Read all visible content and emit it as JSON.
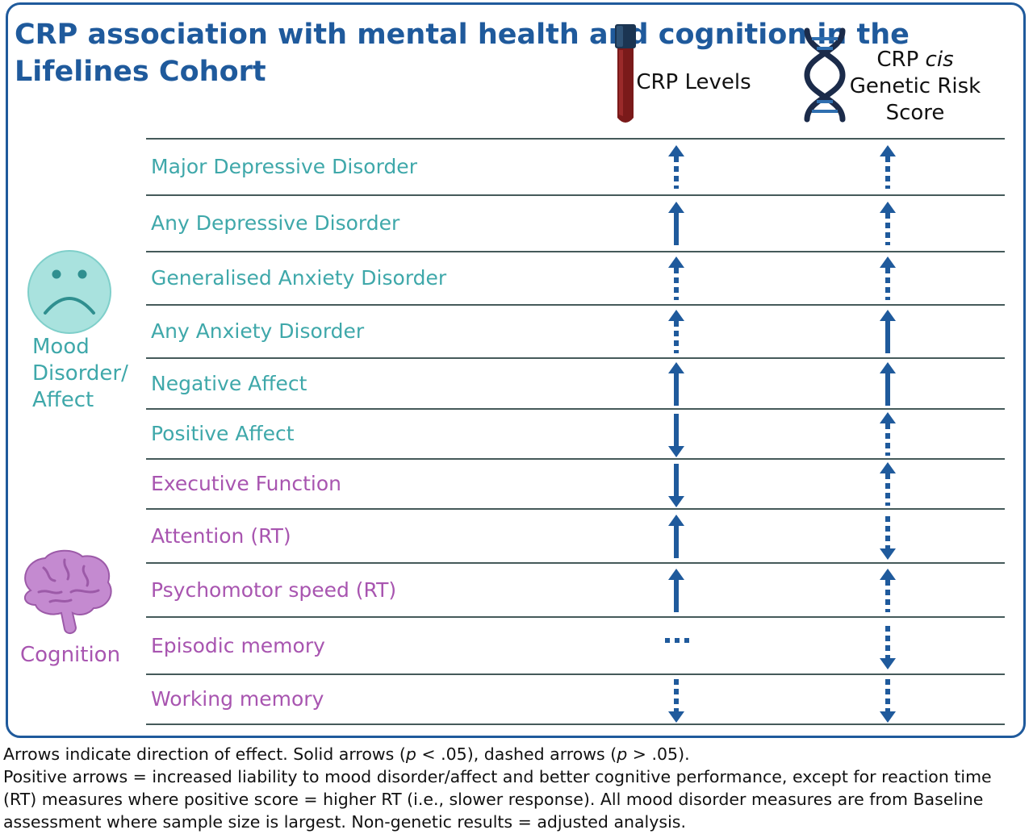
{
  "title": "CRP association with mental health and cognition in the Lifelines Cohort",
  "columns": {
    "levels": "CRP Levels",
    "genetic_pre": "CRP ",
    "genetic_cis": "cis",
    "genetic_line2": "Genetic Risk",
    "genetic_line3": "Score"
  },
  "categories": {
    "mood": [
      "Mood",
      "Disorder/",
      "Affect"
    ],
    "cognition": "Cognition"
  },
  "colors": {
    "frame": "#1f5a9c",
    "arrow": "#1f5a9c",
    "mood": "#3fa8aa",
    "cognition": "#a855b0"
  },
  "rows": [
    {
      "label": "Major Depressive Disorder",
      "group": "mood",
      "crp": "up-dashed",
      "grs": "up-dashed"
    },
    {
      "label": "Any Depressive Disorder",
      "group": "mood",
      "crp": "up-solid",
      "grs": "up-dashed"
    },
    {
      "label": "Generalised Anxiety Disorder",
      "group": "mood",
      "crp": "up-dashed",
      "grs": "up-dashed"
    },
    {
      "label": "Any Anxiety Disorder",
      "group": "mood",
      "crp": "up-dashed",
      "grs": "up-solid"
    },
    {
      "label": "Negative Affect",
      "group": "mood",
      "crp": "up-solid",
      "grs": "up-solid"
    },
    {
      "label": "Positive Affect",
      "group": "mood",
      "crp": "down-solid",
      "grs": "up-dashed"
    },
    {
      "label": "Executive Function",
      "group": "cog",
      "crp": "down-solid",
      "grs": "up-dashed"
    },
    {
      "label": "Attention (RT)",
      "group": "cog",
      "crp": "up-solid",
      "grs": "down-dashed"
    },
    {
      "label": "Psychomotor speed (RT)",
      "group": "cog",
      "crp": "up-solid",
      "grs": "up-dashed"
    },
    {
      "label": "Episodic memory",
      "group": "cog",
      "crp": "none-dashed",
      "grs": "down-dashed"
    },
    {
      "label": "Working memory",
      "group": "cog",
      "crp": "down-dashed",
      "grs": "down-dashed"
    }
  ],
  "footnote": {
    "line1_a": "Arrows indicate direction of effect. Solid arrows (",
    "p": "p",
    "line1_b": " < .05), dashed arrows (",
    "line1_c": " > .05).",
    "line2": "Positive arrows = increased liability to mood disorder/affect and better cognitive performance, except for reaction time (RT) measures where positive score = higher RT (i.e., slower response). All mood disorder measures are from Baseline assessment where sample size is largest. Non-genetic results = adjusted analysis."
  }
}
